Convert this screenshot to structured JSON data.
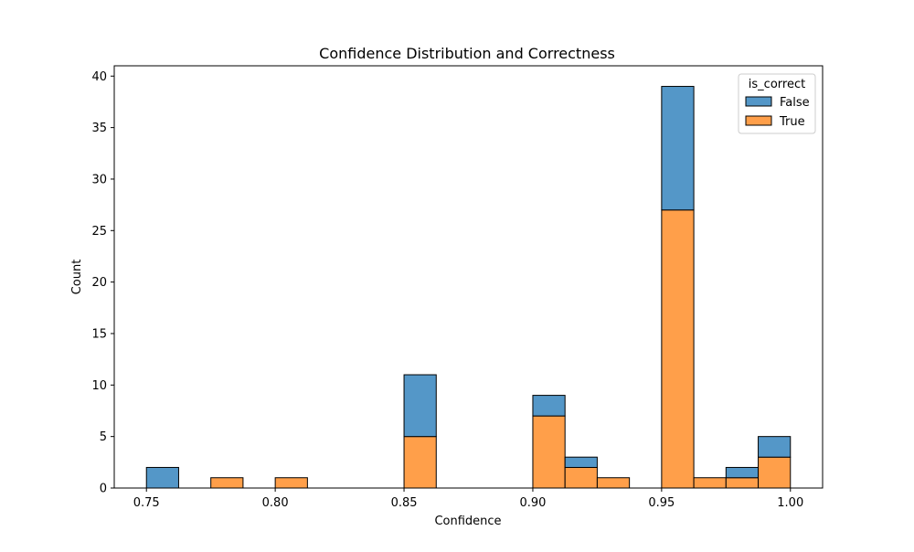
{
  "chart_data": {
    "type": "bar",
    "stacked": true,
    "title": "Confidence Distribution and Correctness",
    "xlabel": "Confidence",
    "ylabel": "Count",
    "xlim": [
      0.7375,
      1.0125
    ],
    "ylim": [
      0,
      41
    ],
    "xticks": [
      0.75,
      0.8,
      0.85,
      0.9,
      0.95,
      1.0
    ],
    "xtick_labels": [
      "0.75",
      "0.80",
      "0.85",
      "0.90",
      "0.95",
      "1.00"
    ],
    "yticks": [
      0,
      5,
      10,
      15,
      20,
      25,
      30,
      35,
      40
    ],
    "grid": false,
    "bin_width": 0.0125,
    "bin_starts": [
      0.75,
      0.7625,
      0.775,
      0.7875,
      0.8,
      0.8125,
      0.825,
      0.8375,
      0.85,
      0.8625,
      0.875,
      0.8875,
      0.9,
      0.9125,
      0.925,
      0.9375,
      0.95,
      0.9625,
      0.975,
      0.9875
    ],
    "series": [
      {
        "name": "True",
        "color": "#ff9f4a",
        "values": [
          0,
          0,
          1,
          0,
          1,
          0,
          0,
          0,
          5,
          0,
          0,
          0,
          7,
          2,
          1,
          0,
          27,
          1,
          1,
          3
        ]
      },
      {
        "name": "False",
        "color": "#5497c8",
        "values": [
          2,
          0,
          0,
          0,
          0,
          0,
          0,
          0,
          6,
          0,
          0,
          0,
          2,
          1,
          0,
          0,
          12,
          0,
          1,
          2
        ]
      }
    ],
    "legend": {
      "title": "is_correct",
      "placement": "top-right",
      "entries": [
        {
          "label": "False",
          "color": "#5497c8"
        },
        {
          "label": "True",
          "color": "#ff9f4a"
        }
      ]
    }
  }
}
